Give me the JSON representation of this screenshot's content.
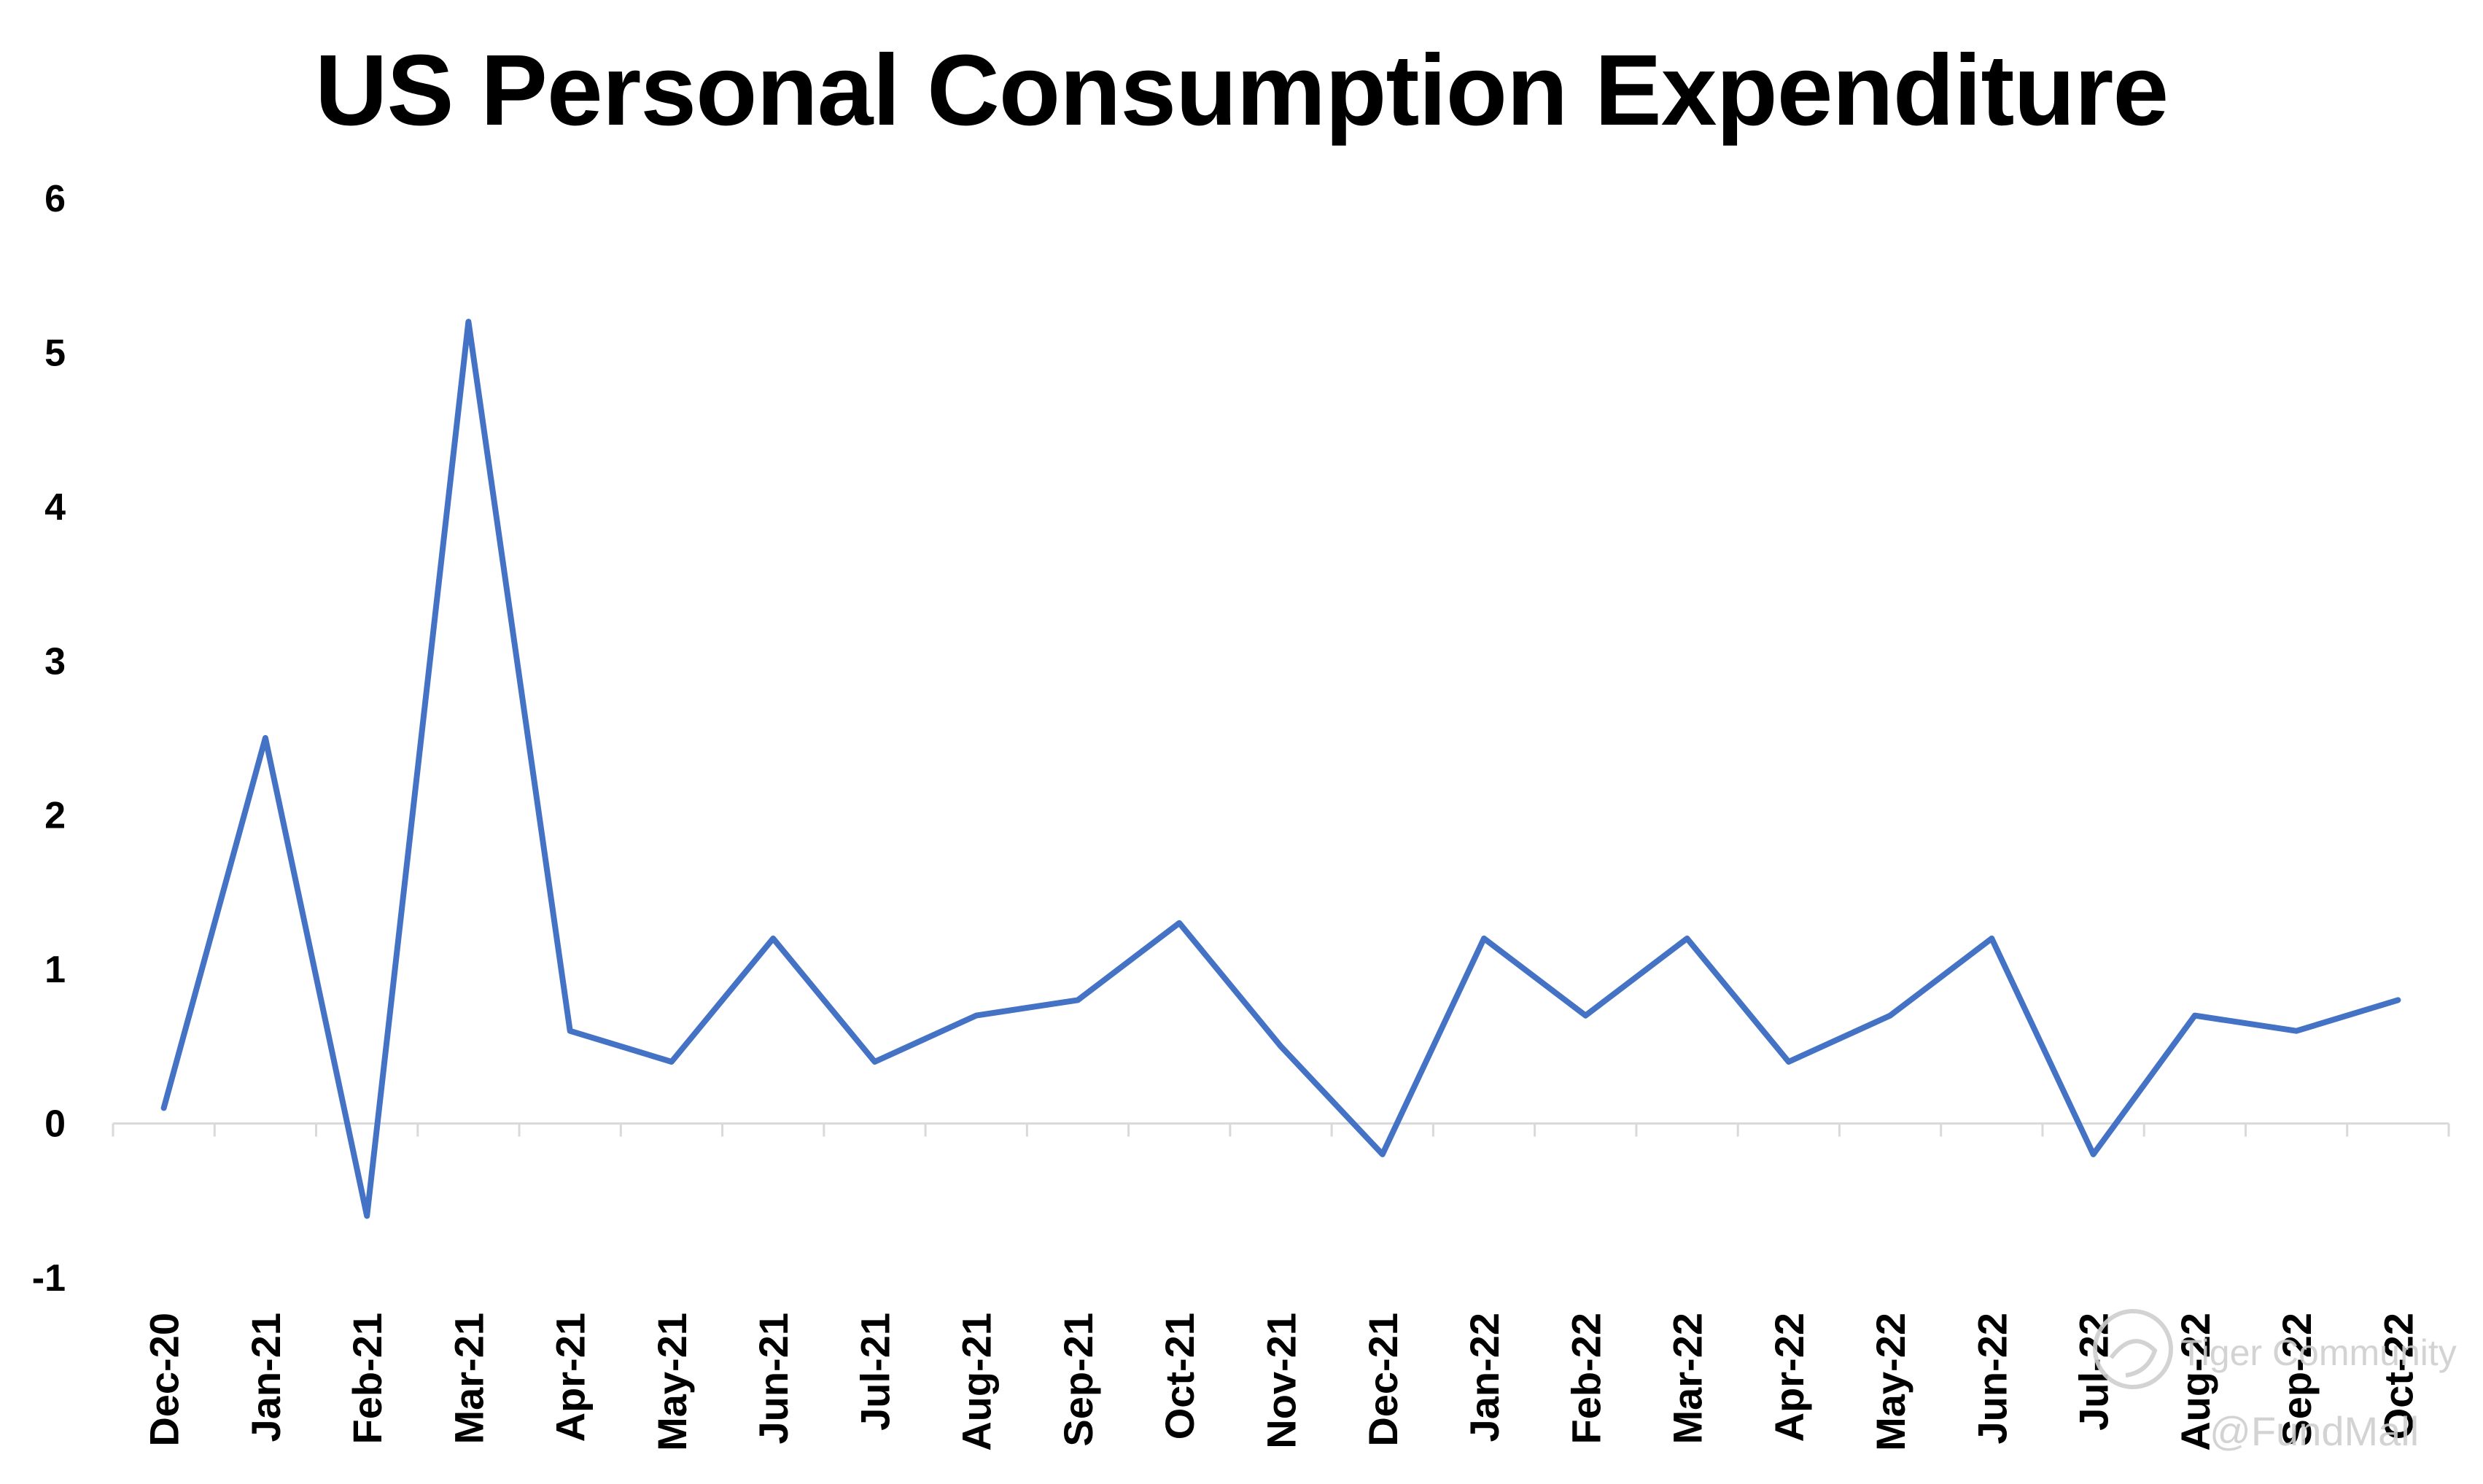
{
  "chart_data": {
    "type": "line",
    "title": "US Personal Consumption Expenditure",
    "xlabel": "",
    "ylabel": "",
    "categories": [
      "Dec-20",
      "Jan-21",
      "Feb-21",
      "Mar-21",
      "Apr-21",
      "May-21",
      "Jun-21",
      "Jul-21",
      "Aug-21",
      "Sep-21",
      "Oct-21",
      "Nov-21",
      "Dec-21",
      "Jan-22",
      "Feb-22",
      "Mar-22",
      "Apr-22",
      "May-22",
      "Jun-22",
      "Jul-22",
      "Aug-22",
      "Sep-22",
      "Oct-22"
    ],
    "series": [
      {
        "values": [
          0.1,
          2.5,
          -0.6,
          5.2,
          0.6,
          0.4,
          1.2,
          0.4,
          0.7,
          0.8,
          1.3,
          0.5,
          -0.2,
          1.2,
          0.7,
          1.2,
          0.4,
          0.7,
          1.2,
          -0.2,
          0.7,
          0.6,
          0.8
        ],
        "color": "#4472C4"
      }
    ],
    "ylim": [
      -1,
      6
    ],
    "yticks": [
      -1,
      0,
      1,
      2,
      3,
      4,
      5,
      6
    ],
    "grid": false,
    "legend": "none"
  },
  "watermark": {
    "line1": "Tiger Community",
    "line2": "@FundMall"
  }
}
